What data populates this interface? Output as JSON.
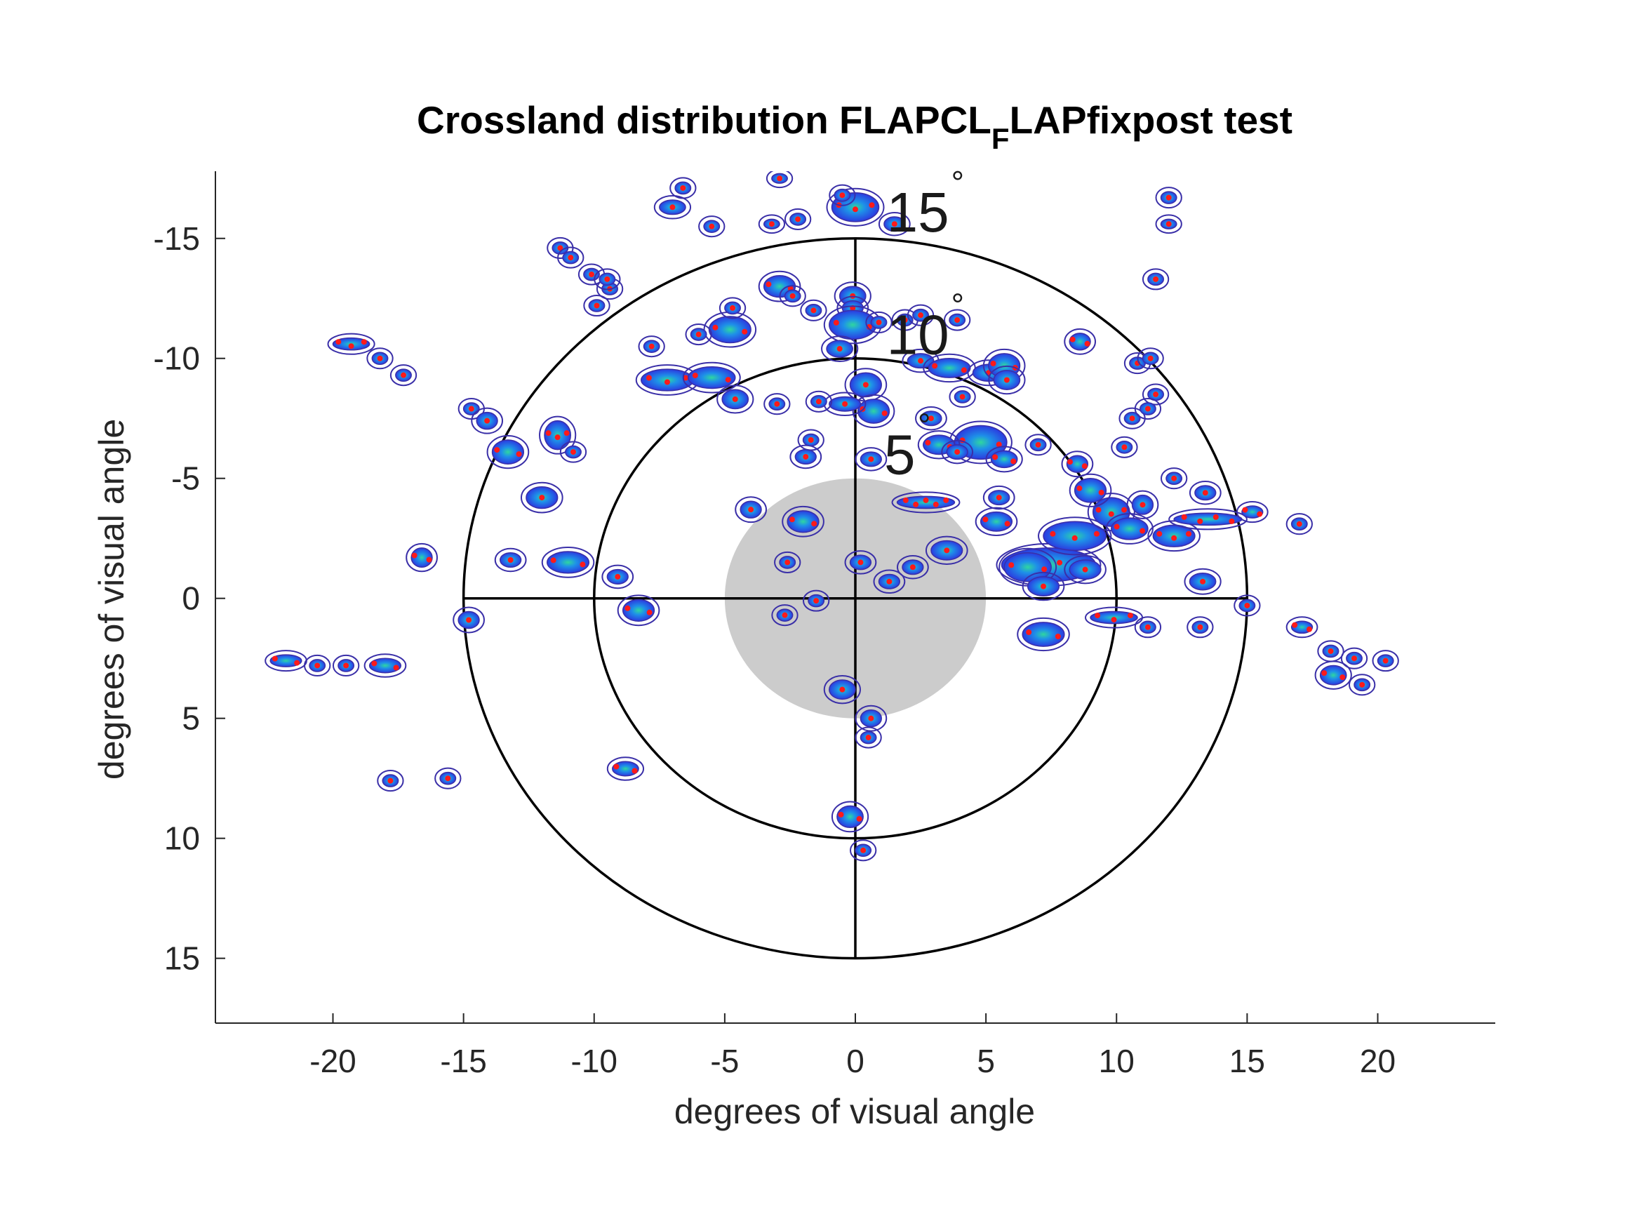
{
  "chart_data": {
    "type": "heatmap",
    "title_parts": {
      "main": "Crossland distribution FLAPCL",
      "subscript": "F",
      "tail": "LAPfixpost test"
    },
    "xlabel": "degrees of visual angle",
    "ylabel": "degrees of visual angle",
    "xlim": [
      -24.5,
      24.5
    ],
    "ylim": [
      -17.8,
      17.7
    ],
    "y_reversed": true,
    "xticks": [
      -20,
      -15,
      -10,
      -5,
      0,
      5,
      10,
      15,
      20
    ],
    "xtick_labels": [
      "-20",
      "-15",
      "-10",
      "-5",
      "0",
      "5",
      "10",
      "15",
      "20"
    ],
    "yticks": [
      -15,
      -10,
      -5,
      0,
      5,
      10,
      15
    ],
    "ytick_labels": [
      "-15",
      "-10",
      "-5",
      "0",
      "5",
      "10",
      "15"
    ],
    "reference_circles": [
      {
        "radius": 15,
        "label": "15",
        "unit": "°",
        "label_pos": [
          1.2,
          -16.1
        ]
      },
      {
        "radius": 10,
        "label": "10",
        "unit": "°",
        "label_pos": [
          1.2,
          -11.0
        ]
      },
      {
        "radius": 5,
        "label": "5",
        "unit": "°",
        "label_pos": [
          1.1,
          -6.0
        ]
      }
    ],
    "scotoma": {
      "center": [
        0,
        0
      ],
      "radius": 5,
      "color": "#cccccc"
    },
    "crosshair": {
      "color": "#000000"
    },
    "colors": {
      "contour": "#3a2fa8",
      "fill_low": "#2b3be0",
      "fill_mid": "#1e90e8",
      "fill_high": "#2fd6a0",
      "point": "#ff1a1a"
    },
    "clusters": [
      [
        0,
        -16.3,
        0.9,
        0.6,
        3
      ],
      [
        1.5,
        -15.6,
        0.4,
        0.3,
        1
      ],
      [
        -6.6,
        -17.1,
        0.3,
        0.25,
        1
      ],
      [
        -7.0,
        -16.3,
        0.5,
        0.3,
        1
      ],
      [
        -5.5,
        -15.5,
        0.3,
        0.25,
        1
      ],
      [
        -2.2,
        -15.8,
        0.3,
        0.25,
        1
      ],
      [
        -3.2,
        -15.6,
        0.3,
        0.2,
        1
      ],
      [
        12.0,
        -16.7,
        0.3,
        0.25,
        1
      ],
      [
        12.0,
        -15.6,
        0.3,
        0.2,
        1
      ],
      [
        11.5,
        -13.3,
        0.3,
        0.25,
        1
      ],
      [
        -11.3,
        -14.6,
        0.3,
        0.25,
        1
      ],
      [
        -10.9,
        -14.2,
        0.3,
        0.25,
        1
      ],
      [
        -10.1,
        -13.5,
        0.3,
        0.25,
        1
      ],
      [
        -9.4,
        -12.9,
        0.3,
        0.25,
        1
      ],
      [
        -9.5,
        -13.3,
        0.3,
        0.25,
        1
      ],
      [
        -9.9,
        -12.2,
        0.3,
        0.25,
        1
      ],
      [
        -2.9,
        -13.0,
        0.6,
        0.45,
        2
      ],
      [
        -2.4,
        -12.6,
        0.3,
        0.25,
        1
      ],
      [
        -0.1,
        -12.6,
        0.5,
        0.4,
        1
      ],
      [
        -0.1,
        -12.1,
        0.4,
        0.3,
        1
      ],
      [
        -0.1,
        -11.4,
        0.9,
        0.6,
        2
      ],
      [
        -4.8,
        -11.2,
        0.8,
        0.55,
        2
      ],
      [
        -4.7,
        -12.1,
        0.3,
        0.25,
        1
      ],
      [
        -7.8,
        -10.5,
        0.3,
        0.25,
        1
      ],
      [
        -6.0,
        -11.0,
        0.3,
        0.25,
        1
      ],
      [
        -1.6,
        -12.0,
        0.3,
        0.25,
        1
      ],
      [
        0.9,
        -11.5,
        0.3,
        0.25,
        1
      ],
      [
        1.9,
        -11.6,
        0.3,
        0.25,
        1
      ],
      [
        2.5,
        -11.8,
        0.3,
        0.25,
        1
      ],
      [
        3.9,
        -11.6,
        0.3,
        0.25,
        1
      ],
      [
        -0.6,
        -10.4,
        0.5,
        0.35,
        1
      ],
      [
        -7.2,
        -9.1,
        1.0,
        0.45,
        3
      ],
      [
        -5.5,
        -9.2,
        0.9,
        0.45,
        2
      ],
      [
        -4.6,
        -8.3,
        0.5,
        0.4,
        1
      ],
      [
        -3.0,
        -8.1,
        0.3,
        0.25,
        1
      ],
      [
        0.4,
        -8.9,
        0.6,
        0.5,
        1
      ],
      [
        0.7,
        -7.8,
        0.6,
        0.5,
        2
      ],
      [
        -0.4,
        -8.1,
        0.6,
        0.3,
        1
      ],
      [
        -1.4,
        -8.2,
        0.3,
        0.25,
        1
      ],
      [
        2.5,
        -9.9,
        0.5,
        0.3,
        1
      ],
      [
        3.6,
        -9.6,
        0.8,
        0.4,
        2
      ],
      [
        4.1,
        -8.4,
        0.3,
        0.25,
        1
      ],
      [
        5.1,
        -9.4,
        0.6,
        0.35,
        1
      ],
      [
        5.7,
        -9.7,
        0.6,
        0.5,
        2
      ],
      [
        5.8,
        -9.1,
        0.5,
        0.4,
        1
      ],
      [
        8.6,
        -10.7,
        0.4,
        0.35,
        2
      ],
      [
        10.8,
        -9.8,
        0.3,
        0.25,
        1
      ],
      [
        11.3,
        -10.0,
        0.3,
        0.25,
        1
      ],
      [
        11.5,
        -8.5,
        0.3,
        0.25,
        1
      ],
      [
        2.9,
        -7.5,
        0.4,
        0.3,
        1
      ],
      [
        4.8,
        -6.5,
        1.0,
        0.7,
        2
      ],
      [
        3.2,
        -6.4,
        0.6,
        0.4,
        2
      ],
      [
        3.9,
        -6.1,
        0.4,
        0.3,
        1
      ],
      [
        5.7,
        -5.8,
        0.5,
        0.35,
        2
      ],
      [
        7.0,
        -6.4,
        0.3,
        0.25,
        1
      ],
      [
        0.6,
        -5.8,
        0.4,
        0.3,
        1
      ],
      [
        -1.9,
        -5.9,
        0.4,
        0.3,
        1
      ],
      [
        -1.7,
        -6.6,
        0.3,
        0.25,
        1
      ],
      [
        -13.3,
        -6.1,
        0.6,
        0.5,
        2
      ],
      [
        -14.7,
        -7.9,
        0.3,
        0.25,
        1
      ],
      [
        -14.1,
        -7.4,
        0.4,
        0.35,
        1
      ],
      [
        -11.4,
        -6.8,
        0.5,
        0.6,
        3
      ],
      [
        -10.8,
        -6.1,
        0.3,
        0.25,
        1
      ],
      [
        -19.3,
        -10.6,
        0.7,
        0.25,
        3
      ],
      [
        -18.2,
        -10.0,
        0.3,
        0.25,
        1
      ],
      [
        -17.3,
        -9.3,
        0.3,
        0.25,
        1
      ],
      [
        -12.0,
        -4.2,
        0.6,
        0.45,
        1
      ],
      [
        -4.0,
        -3.7,
        0.4,
        0.35,
        1
      ],
      [
        -2.0,
        -3.2,
        0.6,
        0.45,
        2
      ],
      [
        -2.6,
        -1.5,
        0.3,
        0.25,
        1
      ],
      [
        0.2,
        -1.5,
        0.4,
        0.3,
        1
      ],
      [
        -11.0,
        -1.5,
        0.8,
        0.45,
        2
      ],
      [
        -13.2,
        -1.6,
        0.4,
        0.3,
        1
      ],
      [
        -16.6,
        -1.7,
        0.4,
        0.4,
        2
      ],
      [
        -9.1,
        -0.9,
        0.4,
        0.3,
        1
      ],
      [
        -1.5,
        0.1,
        0.3,
        0.25,
        1
      ],
      [
        -2.7,
        0.7,
        0.3,
        0.25,
        1
      ],
      [
        1.3,
        -0.7,
        0.4,
        0.3,
        1
      ],
      [
        2.2,
        -1.3,
        0.4,
        0.3,
        1
      ],
      [
        3.5,
        -2.0,
        0.6,
        0.4,
        1
      ],
      [
        2.7,
        -4.0,
        1.1,
        0.25,
        5
      ],
      [
        5.4,
        -3.2,
        0.6,
        0.4,
        2
      ],
      [
        5.5,
        -4.2,
        0.4,
        0.3,
        1
      ],
      [
        7.4,
        -1.4,
        1.8,
        0.7,
        4
      ],
      [
        6.6,
        -1.3,
        0.9,
        0.6,
        2
      ],
      [
        7.2,
        -0.5,
        0.6,
        0.4,
        1
      ],
      [
        8.4,
        -2.6,
        1.2,
        0.6,
        3
      ],
      [
        8.8,
        -1.2,
        0.6,
        0.4,
        1
      ],
      [
        9.8,
        -3.6,
        0.7,
        0.6,
        3
      ],
      [
        9.0,
        -4.5,
        0.6,
        0.5,
        2
      ],
      [
        8.5,
        -5.6,
        0.4,
        0.35,
        2
      ],
      [
        11.0,
        -3.9,
        0.4,
        0.4,
        1
      ],
      [
        12.2,
        -2.6,
        0.8,
        0.45,
        3
      ],
      [
        10.5,
        -2.9,
        0.7,
        0.45,
        2
      ],
      [
        13.5,
        -3.3,
        1.3,
        0.25,
        4
      ],
      [
        13.4,
        -4.4,
        0.4,
        0.3,
        1
      ],
      [
        12.2,
        -5.0,
        0.3,
        0.25,
        1
      ],
      [
        10.3,
        -6.3,
        0.3,
        0.25,
        1
      ],
      [
        10.6,
        -7.5,
        0.3,
        0.25,
        1
      ],
      [
        11.2,
        -7.9,
        0.3,
        0.25,
        1
      ],
      [
        15.2,
        -3.6,
        0.4,
        0.25,
        2
      ],
      [
        17.0,
        -3.1,
        0.3,
        0.25,
        1
      ],
      [
        13.3,
        -0.7,
        0.5,
        0.35,
        1
      ],
      [
        15.0,
        0.3,
        0.3,
        0.25,
        1
      ],
      [
        9.9,
        0.8,
        0.9,
        0.25,
        3
      ],
      [
        11.2,
        1.2,
        0.3,
        0.25,
        1
      ],
      [
        13.2,
        1.2,
        0.3,
        0.25,
        1
      ],
      [
        7.2,
        1.5,
        0.8,
        0.5,
        2
      ],
      [
        17.1,
        1.2,
        0.4,
        0.25,
        2
      ],
      [
        18.2,
        2.2,
        0.3,
        0.25,
        1
      ],
      [
        19.1,
        2.5,
        0.3,
        0.25,
        1
      ],
      [
        20.3,
        2.6,
        0.3,
        0.25,
        1
      ],
      [
        18.3,
        3.2,
        0.5,
        0.4,
        2
      ],
      [
        19.4,
        3.6,
        0.3,
        0.25,
        1
      ],
      [
        -8.3,
        0.5,
        0.6,
        0.45,
        2
      ],
      [
        -14.8,
        0.9,
        0.4,
        0.35,
        1
      ],
      [
        -0.5,
        3.8,
        0.5,
        0.4,
        1
      ],
      [
        0.6,
        5.0,
        0.4,
        0.35,
        1
      ],
      [
        0.5,
        5.8,
        0.3,
        0.25,
        1
      ],
      [
        -8.8,
        7.1,
        0.5,
        0.3,
        2
      ],
      [
        -0.2,
        9.1,
        0.5,
        0.45,
        2
      ],
      [
        0.3,
        10.5,
        0.3,
        0.25,
        1
      ],
      [
        -21.8,
        2.6,
        0.6,
        0.25,
        2
      ],
      [
        -20.6,
        2.8,
        0.3,
        0.25,
        1
      ],
      [
        -19.5,
        2.8,
        0.3,
        0.25,
        1
      ],
      [
        -18.0,
        2.8,
        0.6,
        0.3,
        2
      ],
      [
        -17.8,
        7.6,
        0.3,
        0.25,
        1
      ],
      [
        -15.6,
        7.5,
        0.3,
        0.25,
        1
      ],
      [
        -0.5,
        -16.8,
        0.3,
        0.25,
        1
      ],
      [
        -2.9,
        -17.5,
        0.3,
        0.2,
        1
      ]
    ]
  }
}
